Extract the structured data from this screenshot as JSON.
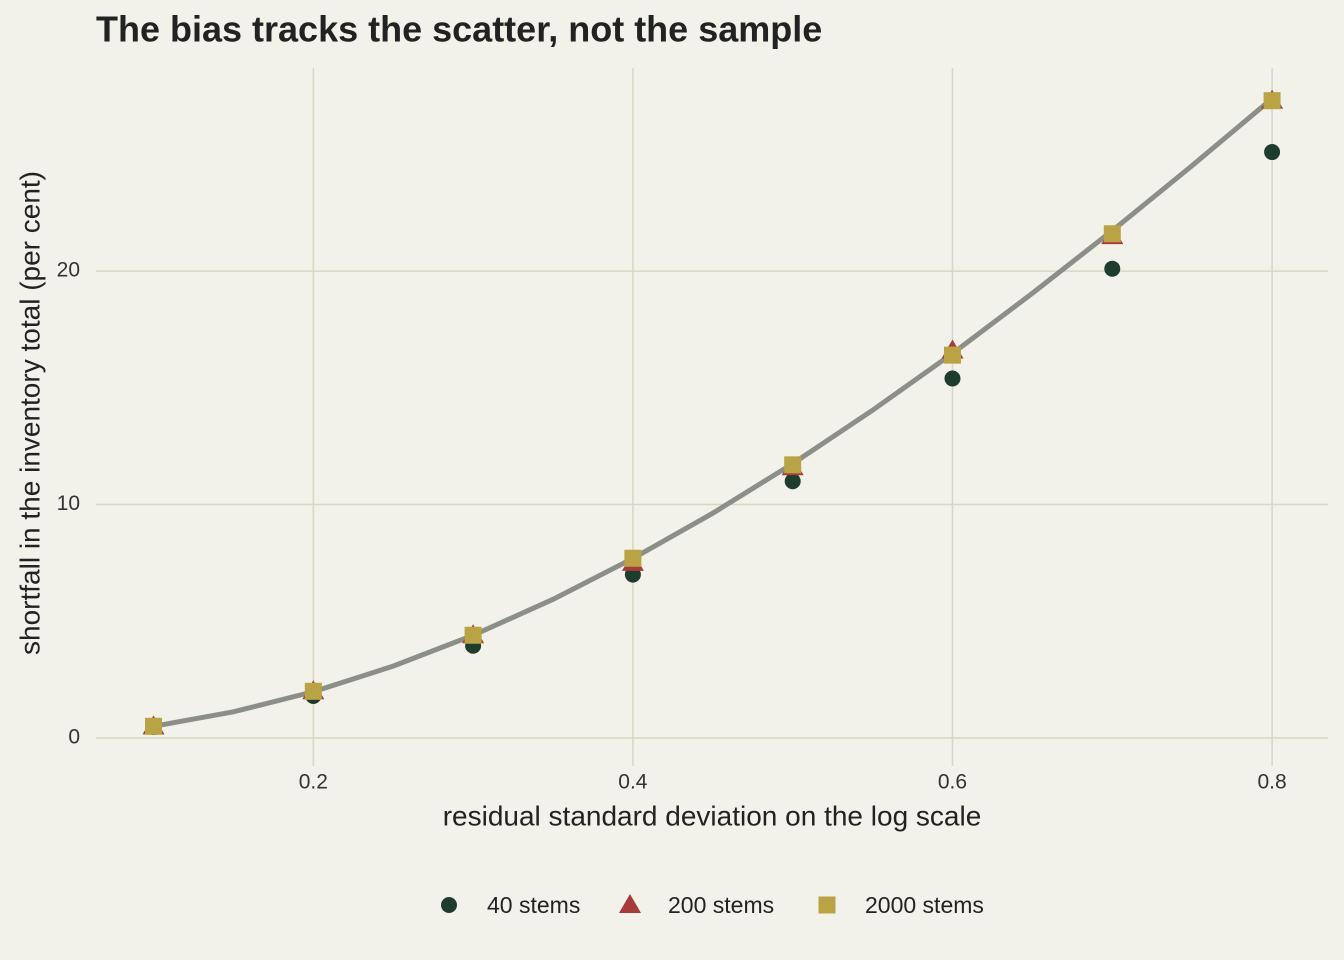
{
  "chart_data": {
    "type": "scatter",
    "title": "The bias tracks the scatter, not the sample",
    "x_label": "residual standard deviation on the log scale",
    "y_label": "shortfall in the inventory total (per cent)",
    "x": [
      0.1,
      0.2,
      0.3,
      0.4,
      0.5,
      0.6,
      0.7,
      0.8
    ],
    "series": [
      {
        "name": "40 stems",
        "color": "#1f3d2c",
        "marker": "circle",
        "values": [
          0.47,
          1.8,
          3.95,
          7.0,
          11.0,
          15.4,
          20.1,
          25.1
        ]
      },
      {
        "name": "200 stems",
        "color": "#a83a3a",
        "marker": "triangle",
        "values": [
          0.5,
          2.0,
          4.4,
          7.5,
          11.6,
          16.6,
          21.5,
          27.3
        ]
      },
      {
        "name": "2000 stems",
        "color": "#b9a345",
        "marker": "square",
        "values": [
          0.5,
          2.0,
          4.4,
          7.7,
          11.7,
          16.4,
          21.6,
          27.3
        ]
      }
    ],
    "curve": {
      "color": "#8c8f88",
      "x": [
        0.1,
        0.15,
        0.2,
        0.25,
        0.3,
        0.35,
        0.4,
        0.45,
        0.5,
        0.55,
        0.6,
        0.65,
        0.7,
        0.75,
        0.8
      ],
      "values": [
        0.5,
        1.12,
        1.98,
        3.08,
        4.4,
        5.94,
        7.69,
        9.63,
        11.75,
        14.04,
        16.47,
        19.05,
        21.73,
        24.52,
        27.39
      ]
    },
    "xlim": [
      0.064,
      0.835
    ],
    "ylim": [
      -1.2,
      28.7
    ],
    "xticks": [
      0.2,
      0.4,
      0.6,
      0.8
    ],
    "yticks": [
      0,
      10,
      20
    ],
    "grid": true,
    "legend": "bottom"
  }
}
